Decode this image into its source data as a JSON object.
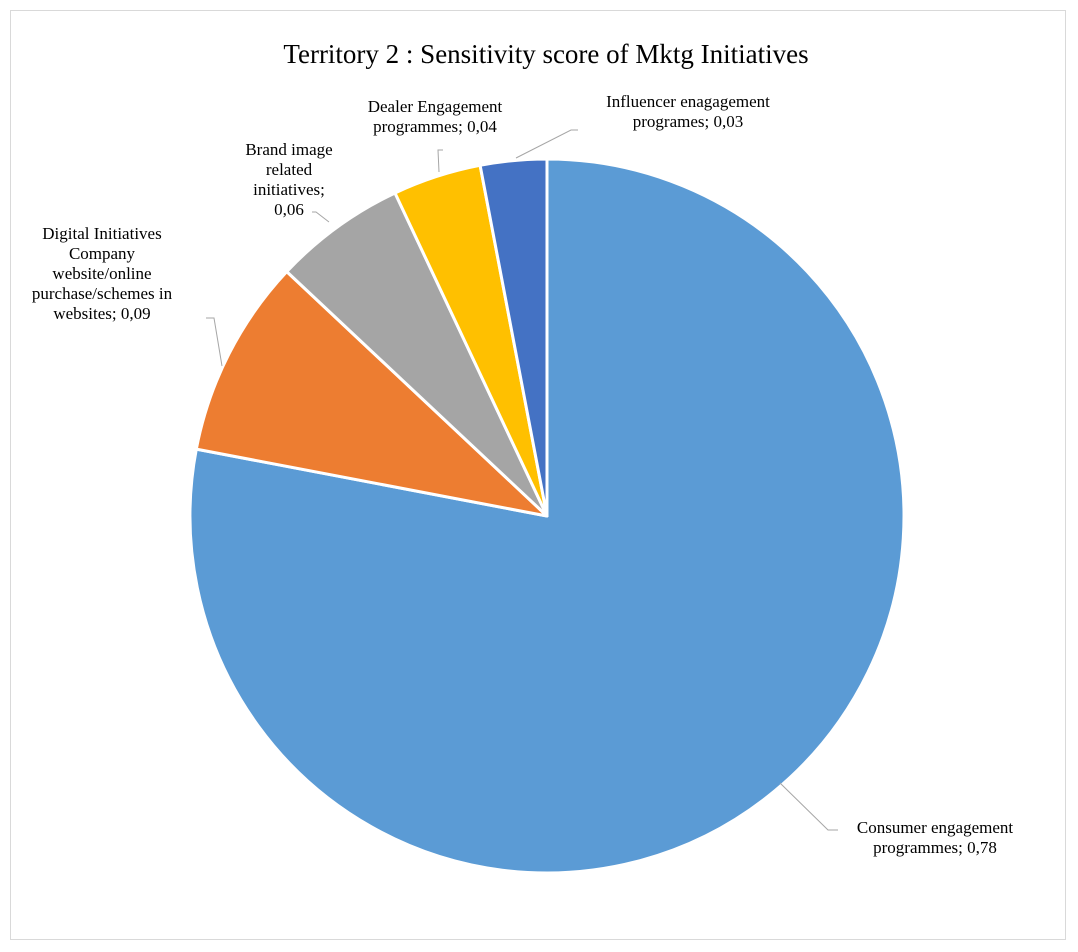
{
  "chart_data": {
    "type": "pie",
    "title": "Territory 2 : Sensitivity score of Mktg Initiatives",
    "slices": [
      {
        "name": "Consumer engagement programmes",
        "value": 0.78,
        "label_lines": [
          "Consumer engagement",
          "programmes; 0,78"
        ],
        "color": "#5B9BD5"
      },
      {
        "name": "Digital Initiatives Company website/online purchase/schemes in websites",
        "value": 0.09,
        "label_lines": [
          "Digital Initiatives",
          "Company",
          "website/online",
          "purchase/schemes in",
          "websites; 0,09"
        ],
        "color": "#ED7D31"
      },
      {
        "name": "Brand image related initiatives",
        "value": 0.06,
        "label_lines": [
          "Brand image",
          "related",
          "initiatives;",
          "0,06"
        ],
        "color": "#A5A5A5"
      },
      {
        "name": "Dealer Engagement programmes",
        "value": 0.04,
        "label_lines": [
          "Dealer Engagement",
          "programmes; 0,04"
        ],
        "color": "#FFC000"
      },
      {
        "name": "Influencer enagagement programes",
        "value": 0.03,
        "label_lines": [
          "Influencer enagagement",
          "programes; 0,03"
        ],
        "color": "#4472C4"
      }
    ],
    "start": "12 o'clock",
    "direction": "clockwise",
    "legend": "none"
  }
}
